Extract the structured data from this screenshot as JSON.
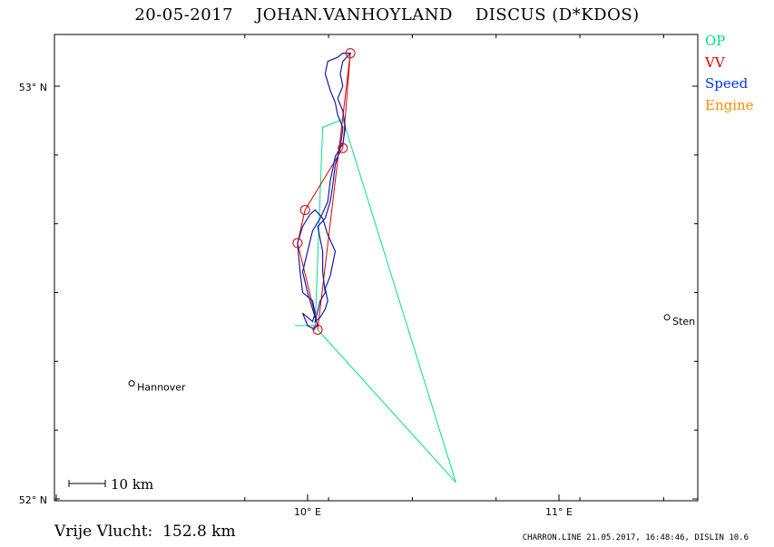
{
  "title": {
    "date": "20-05-2017",
    "pilot": "JOHAN.VANHOYLAND",
    "glider": "DISCUS (D*KDOS)"
  },
  "legend": [
    {
      "label": "OP",
      "color": "#00e08a"
    },
    {
      "label": "VV",
      "color": "#d40000"
    },
    {
      "label": "Speed",
      "color": "#0033ff"
    },
    {
      "label": "Engine",
      "color": "#ff8c00"
    }
  ],
  "axes": {
    "lat_labels": [
      "53° N",
      "52° N"
    ],
    "lon_labels": [
      "10° E",
      "11° E"
    ]
  },
  "towns": [
    {
      "name": "Hannover",
      "lon": 9.3,
      "lat": 52.28
    },
    {
      "name": "Sten",
      "lon": 11.43,
      "lat": 52.44
    }
  ],
  "scale": {
    "label": "10 km"
  },
  "distance": {
    "label": "Vrije Vlucht:",
    "value": "152.8 km"
  },
  "footer": "CHARRON.LINE 21.05.2017, 16:48:46, DISLIN 10.6",
  "flight": {
    "op_route": [
      [
        9.95,
        52.42
      ],
      [
        10.03,
        52.42
      ],
      [
        10.04,
        52.58
      ],
      [
        10.06,
        52.9
      ],
      [
        10.14,
        52.92
      ],
      [
        10.59,
        52.04
      ],
      [
        10.04,
        52.41
      ]
    ],
    "vv_route": [
      [
        10.04,
        52.42
      ],
      [
        9.96,
        52.62
      ],
      [
        9.99,
        52.7
      ],
      [
        10.14,
        52.85
      ],
      [
        10.17,
        53.08
      ],
      [
        10.04,
        52.41
      ]
    ],
    "turnpoints": [
      [
        10.04,
        52.41
      ],
      [
        9.96,
        52.62
      ],
      [
        9.99,
        52.7
      ],
      [
        10.14,
        52.85
      ],
      [
        10.17,
        53.08
      ]
    ],
    "track": [
      [
        10.03,
        52.41
      ],
      [
        10.0,
        52.42
      ],
      [
        9.98,
        52.45
      ],
      [
        10.02,
        52.43
      ],
      [
        10.03,
        52.45
      ],
      [
        10.02,
        52.48
      ],
      [
        9.98,
        52.5
      ],
      [
        9.97,
        52.55
      ],
      [
        9.96,
        52.62
      ],
      [
        9.98,
        52.66
      ],
      [
        10.01,
        52.69
      ],
      [
        10.03,
        52.7
      ],
      [
        10.06,
        52.68
      ],
      [
        10.08,
        52.64
      ],
      [
        10.11,
        52.6
      ],
      [
        10.09,
        52.54
      ],
      [
        10.07,
        52.51
      ],
      [
        10.08,
        52.48
      ],
      [
        10.07,
        52.46
      ],
      [
        10.05,
        52.44
      ],
      [
        10.03,
        52.43
      ],
      [
        10.05,
        52.48
      ],
      [
        10.07,
        52.5
      ],
      [
        10.06,
        52.55
      ],
      [
        10.06,
        52.6
      ],
      [
        10.04,
        52.66
      ],
      [
        10.07,
        52.68
      ],
      [
        10.09,
        52.72
      ],
      [
        10.1,
        52.76
      ],
      [
        10.11,
        52.81
      ],
      [
        10.13,
        52.85
      ],
      [
        10.14,
        52.9
      ],
      [
        10.12,
        52.93
      ],
      [
        10.11,
        52.96
      ],
      [
        10.09,
        52.99
      ],
      [
        10.07,
        53.03
      ],
      [
        10.08,
        53.06
      ],
      [
        10.12,
        53.07
      ],
      [
        10.14,
        53.08
      ],
      [
        10.17,
        53.08
      ],
      [
        10.14,
        53.06
      ],
      [
        10.13,
        53.03
      ],
      [
        10.14,
        53.0
      ],
      [
        10.12,
        52.97
      ],
      [
        10.14,
        52.94
      ],
      [
        10.15,
        52.9
      ],
      [
        10.14,
        52.86
      ],
      [
        10.11,
        52.83
      ],
      [
        10.09,
        52.77
      ],
      [
        10.08,
        52.72
      ],
      [
        10.05,
        52.68
      ],
      [
        10.02,
        52.65
      ],
      [
        10.0,
        52.6
      ],
      [
        9.98,
        52.55
      ],
      [
        10.0,
        52.5
      ],
      [
        10.02,
        52.46
      ],
      [
        10.04,
        52.42
      ],
      [
        10.02,
        52.41
      ]
    ]
  }
}
